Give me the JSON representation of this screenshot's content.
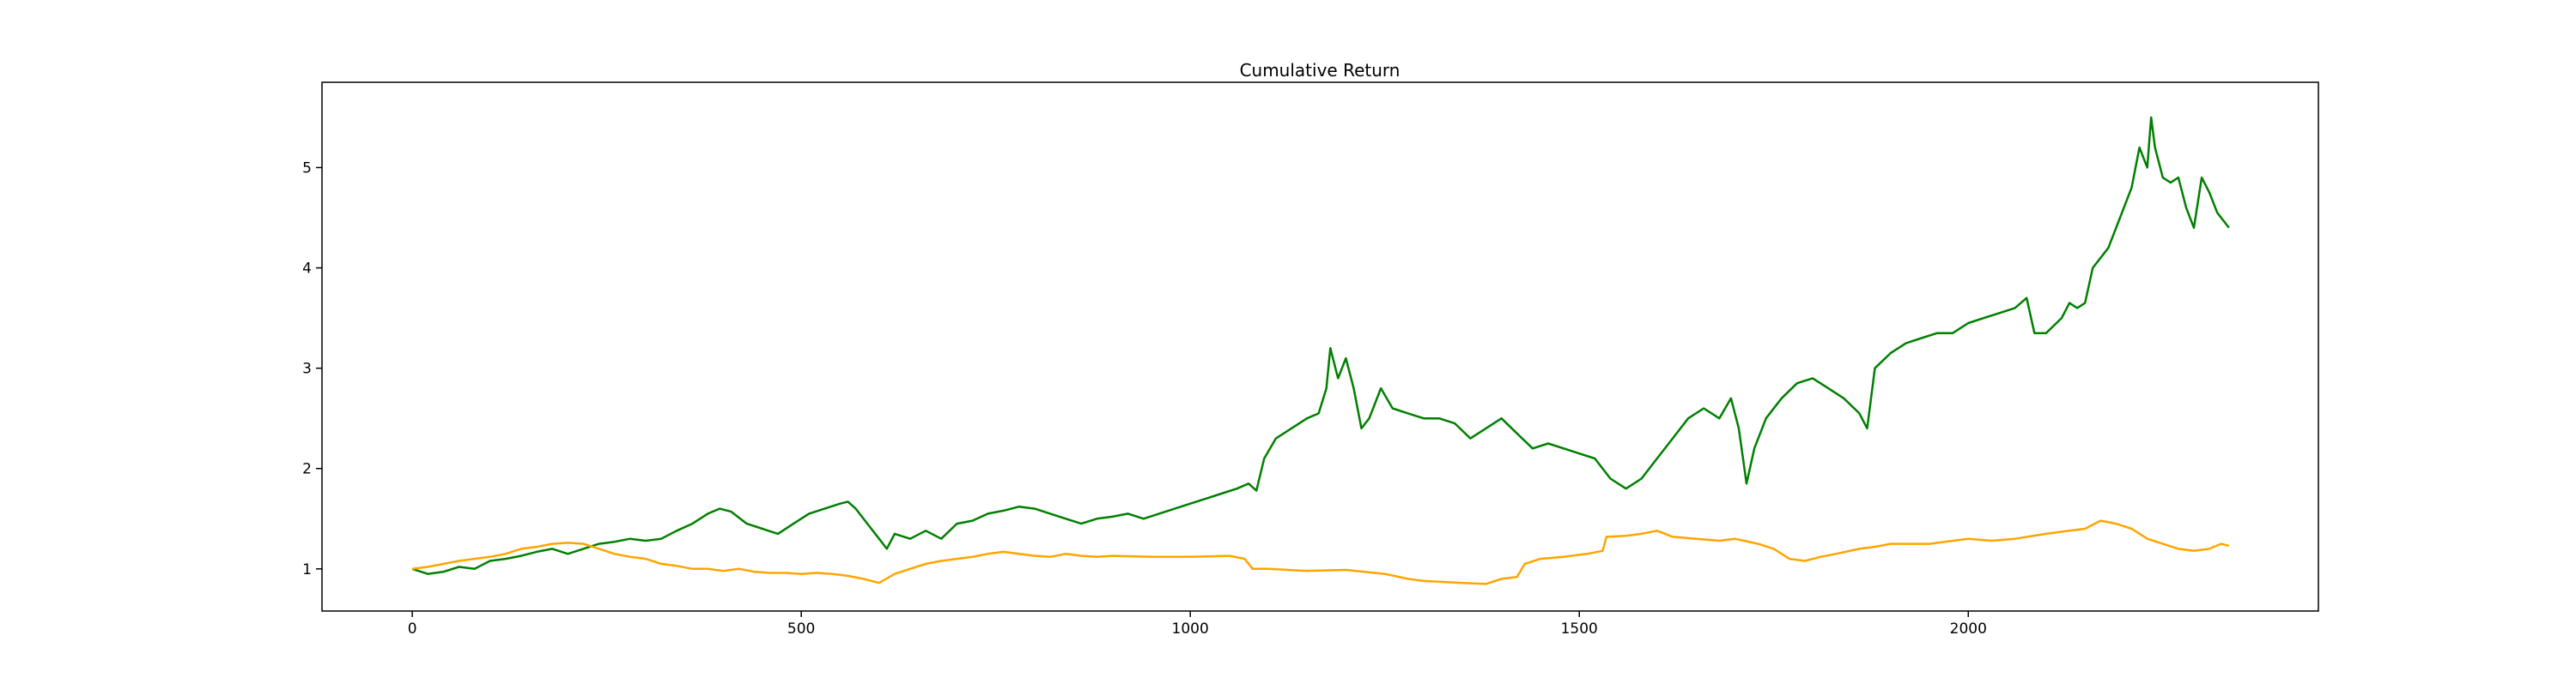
{
  "chart_data": {
    "type": "line",
    "title": "Cumulative Return",
    "xlabel": "",
    "ylabel": "",
    "xlim": [
      -116,
      2450
    ],
    "ylim": [
      0.58,
      5.85
    ],
    "x_ticks": [
      0,
      500,
      1000,
      1500,
      2000
    ],
    "y_ticks": [
      1,
      2,
      3,
      4,
      5
    ],
    "grid": false,
    "legend": "none",
    "series": [
      {
        "color": "#008000",
        "points": [
          [
            0,
            1.0
          ],
          [
            20,
            0.95
          ],
          [
            40,
            0.97
          ],
          [
            60,
            1.02
          ],
          [
            80,
            1.0
          ],
          [
            100,
            1.08
          ],
          [
            120,
            1.1
          ],
          [
            140,
            1.13
          ],
          [
            160,
            1.17
          ],
          [
            180,
            1.2
          ],
          [
            200,
            1.15
          ],
          [
            220,
            1.2
          ],
          [
            240,
            1.25
          ],
          [
            260,
            1.27
          ],
          [
            280,
            1.3
          ],
          [
            300,
            1.28
          ],
          [
            320,
            1.3
          ],
          [
            340,
            1.38
          ],
          [
            360,
            1.45
          ],
          [
            380,
            1.55
          ],
          [
            395,
            1.6
          ],
          [
            410,
            1.57
          ],
          [
            430,
            1.45
          ],
          [
            450,
            1.4
          ],
          [
            470,
            1.35
          ],
          [
            490,
            1.45
          ],
          [
            510,
            1.55
          ],
          [
            530,
            1.6
          ],
          [
            550,
            1.65
          ],
          [
            560,
            1.67
          ],
          [
            570,
            1.6
          ],
          [
            580,
            1.5
          ],
          [
            590,
            1.4
          ],
          [
            600,
            1.3
          ],
          [
            610,
            1.2
          ],
          [
            620,
            1.35
          ],
          [
            640,
            1.3
          ],
          [
            660,
            1.38
          ],
          [
            680,
            1.3
          ],
          [
            700,
            1.45
          ],
          [
            720,
            1.48
          ],
          [
            740,
            1.55
          ],
          [
            760,
            1.58
          ],
          [
            780,
            1.62
          ],
          [
            800,
            1.6
          ],
          [
            820,
            1.55
          ],
          [
            840,
            1.5
          ],
          [
            860,
            1.45
          ],
          [
            880,
            1.5
          ],
          [
            900,
            1.52
          ],
          [
            920,
            1.55
          ],
          [
            940,
            1.5
          ],
          [
            960,
            1.55
          ],
          [
            980,
            1.6
          ],
          [
            1000,
            1.65
          ],
          [
            1020,
            1.7
          ],
          [
            1040,
            1.75
          ],
          [
            1060,
            1.8
          ],
          [
            1075,
            1.85
          ],
          [
            1085,
            1.78
          ],
          [
            1095,
            2.1
          ],
          [
            1110,
            2.3
          ],
          [
            1130,
            2.4
          ],
          [
            1150,
            2.5
          ],
          [
            1165,
            2.55
          ],
          [
            1175,
            2.8
          ],
          [
            1180,
            3.2
          ],
          [
            1190,
            2.9
          ],
          [
            1200,
            3.1
          ],
          [
            1210,
            2.8
          ],
          [
            1220,
            2.4
          ],
          [
            1230,
            2.5
          ],
          [
            1245,
            2.8
          ],
          [
            1260,
            2.6
          ],
          [
            1280,
            2.55
          ],
          [
            1300,
            2.5
          ],
          [
            1320,
            2.5
          ],
          [
            1340,
            2.45
          ],
          [
            1360,
            2.3
          ],
          [
            1380,
            2.4
          ],
          [
            1400,
            2.5
          ],
          [
            1420,
            2.35
          ],
          [
            1440,
            2.2
          ],
          [
            1460,
            2.25
          ],
          [
            1480,
            2.2
          ],
          [
            1500,
            2.15
          ],
          [
            1520,
            2.1
          ],
          [
            1540,
            1.9
          ],
          [
            1560,
            1.8
          ],
          [
            1580,
            1.9
          ],
          [
            1600,
            2.1
          ],
          [
            1620,
            2.3
          ],
          [
            1640,
            2.5
          ],
          [
            1660,
            2.6
          ],
          [
            1680,
            2.5
          ],
          [
            1695,
            2.7
          ],
          [
            1705,
            2.4
          ],
          [
            1715,
            1.85
          ],
          [
            1725,
            2.2
          ],
          [
            1740,
            2.5
          ],
          [
            1760,
            2.7
          ],
          [
            1780,
            2.85
          ],
          [
            1800,
            2.9
          ],
          [
            1820,
            2.8
          ],
          [
            1840,
            2.7
          ],
          [
            1860,
            2.55
          ],
          [
            1870,
            2.4
          ],
          [
            1880,
            3.0
          ],
          [
            1900,
            3.15
          ],
          [
            1920,
            3.25
          ],
          [
            1940,
            3.3
          ],
          [
            1960,
            3.35
          ],
          [
            1980,
            3.35
          ],
          [
            2000,
            3.45
          ],
          [
            2020,
            3.5
          ],
          [
            2040,
            3.55
          ],
          [
            2060,
            3.6
          ],
          [
            2075,
            3.7
          ],
          [
            2085,
            3.35
          ],
          [
            2100,
            3.35
          ],
          [
            2120,
            3.5
          ],
          [
            2130,
            3.65
          ],
          [
            2140,
            3.6
          ],
          [
            2150,
            3.65
          ],
          [
            2160,
            4.0
          ],
          [
            2180,
            4.2
          ],
          [
            2200,
            4.6
          ],
          [
            2210,
            4.8
          ],
          [
            2220,
            5.2
          ],
          [
            2230,
            5.0
          ],
          [
            2235,
            5.5
          ],
          [
            2240,
            5.2
          ],
          [
            2250,
            4.9
          ],
          [
            2260,
            4.85
          ],
          [
            2270,
            4.9
          ],
          [
            2280,
            4.6
          ],
          [
            2290,
            4.4
          ],
          [
            2300,
            4.9
          ],
          [
            2310,
            4.75
          ],
          [
            2320,
            4.55
          ],
          [
            2330,
            4.45
          ],
          [
            2335,
            4.4
          ]
        ]
      },
      {
        "color": "#FFA500",
        "points": [
          [
            0,
            1.0
          ],
          [
            20,
            1.02
          ],
          [
            40,
            1.05
          ],
          [
            60,
            1.08
          ],
          [
            80,
            1.1
          ],
          [
            100,
            1.12
          ],
          [
            120,
            1.15
          ],
          [
            140,
            1.2
          ],
          [
            160,
            1.22
          ],
          [
            180,
            1.25
          ],
          [
            200,
            1.26
          ],
          [
            220,
            1.25
          ],
          [
            240,
            1.2
          ],
          [
            260,
            1.15
          ],
          [
            280,
            1.12
          ],
          [
            300,
            1.1
          ],
          [
            320,
            1.05
          ],
          [
            340,
            1.03
          ],
          [
            360,
            1.0
          ],
          [
            380,
            1.0
          ],
          [
            400,
            0.98
          ],
          [
            420,
            1.0
          ],
          [
            440,
            0.97
          ],
          [
            460,
            0.96
          ],
          [
            480,
            0.96
          ],
          [
            500,
            0.95
          ],
          [
            520,
            0.96
          ],
          [
            540,
            0.95
          ],
          [
            560,
            0.93
          ],
          [
            580,
            0.9
          ],
          [
            600,
            0.86
          ],
          [
            620,
            0.95
          ],
          [
            640,
            1.0
          ],
          [
            660,
            1.05
          ],
          [
            680,
            1.08
          ],
          [
            700,
            1.1
          ],
          [
            720,
            1.12
          ],
          [
            740,
            1.15
          ],
          [
            760,
            1.17
          ],
          [
            780,
            1.15
          ],
          [
            800,
            1.13
          ],
          [
            820,
            1.12
          ],
          [
            840,
            1.15
          ],
          [
            860,
            1.13
          ],
          [
            880,
            1.12
          ],
          [
            900,
            1.13
          ],
          [
            950,
            1.12
          ],
          [
            1000,
            1.12
          ],
          [
            1050,
            1.13
          ],
          [
            1070,
            1.1
          ],
          [
            1080,
            1.0
          ],
          [
            1100,
            1.0
          ],
          [
            1150,
            0.98
          ],
          [
            1200,
            0.99
          ],
          [
            1250,
            0.95
          ],
          [
            1280,
            0.9
          ],
          [
            1300,
            0.88
          ],
          [
            1350,
            0.86
          ],
          [
            1380,
            0.85
          ],
          [
            1400,
            0.9
          ],
          [
            1420,
            0.92
          ],
          [
            1430,
            1.05
          ],
          [
            1450,
            1.1
          ],
          [
            1480,
            1.12
          ],
          [
            1510,
            1.15
          ],
          [
            1530,
            1.18
          ],
          [
            1535,
            1.32
          ],
          [
            1560,
            1.33
          ],
          [
            1580,
            1.35
          ],
          [
            1600,
            1.38
          ],
          [
            1620,
            1.32
          ],
          [
            1650,
            1.3
          ],
          [
            1680,
            1.28
          ],
          [
            1700,
            1.3
          ],
          [
            1730,
            1.25
          ],
          [
            1750,
            1.2
          ],
          [
            1770,
            1.1
          ],
          [
            1790,
            1.08
          ],
          [
            1810,
            1.12
          ],
          [
            1830,
            1.15
          ],
          [
            1860,
            1.2
          ],
          [
            1880,
            1.22
          ],
          [
            1900,
            1.25
          ],
          [
            1950,
            1.25
          ],
          [
            2000,
            1.3
          ],
          [
            2030,
            1.28
          ],
          [
            2060,
            1.3
          ],
          [
            2100,
            1.35
          ],
          [
            2130,
            1.38
          ],
          [
            2150,
            1.4
          ],
          [
            2170,
            1.48
          ],
          [
            2190,
            1.45
          ],
          [
            2210,
            1.4
          ],
          [
            2230,
            1.3
          ],
          [
            2250,
            1.25
          ],
          [
            2270,
            1.2
          ],
          [
            2290,
            1.18
          ],
          [
            2310,
            1.2
          ],
          [
            2325,
            1.25
          ],
          [
            2335,
            1.23
          ]
        ]
      }
    ]
  }
}
